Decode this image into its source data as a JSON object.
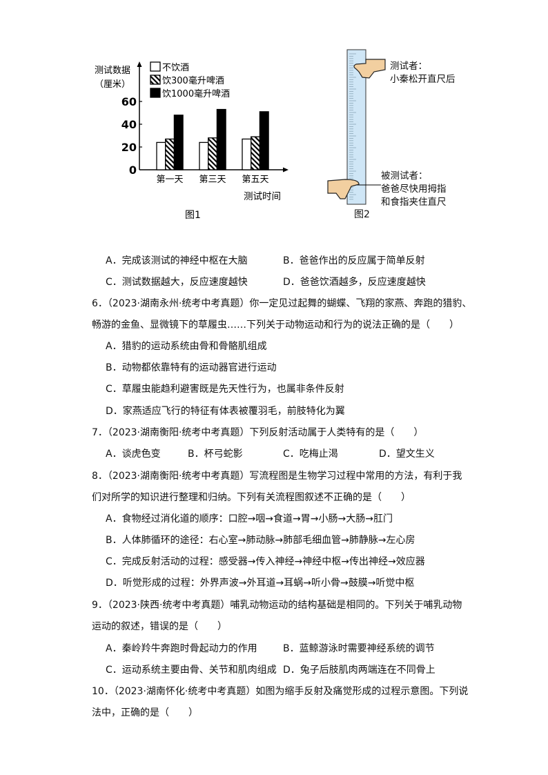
{
  "figure1": {
    "caption": "图1",
    "chart_data": {
      "type": "bar",
      "ylabel_line1": "测试数据",
      "ylabel_line2": "（厘米）",
      "xlabel": "测试时间",
      "categories": [
        "第一天",
        "第三天",
        "第五天"
      ],
      "yticks": [
        "0",
        "20",
        "40",
        "60"
      ],
      "ylim": [
        0,
        70
      ],
      "legend_position": "top-left",
      "series": [
        {
          "name": "不饮酒",
          "values": [
            24,
            24,
            27
          ],
          "fill": "white"
        },
        {
          "name": "饮300毫升啤酒",
          "values": [
            27,
            28,
            29
          ],
          "fill": "hatched"
        },
        {
          "name": "饮1000毫升啤酒",
          "values": [
            48,
            53,
            51
          ],
          "fill": "black"
        }
      ]
    }
  },
  "figure2": {
    "caption": "图2",
    "tester_line1": "测试者：",
    "tester_line2": "小秦松开直尺后",
    "subject_line1": "被测试者：",
    "subject_line2": "爸爸尽快用拇指",
    "subject_line3": "和食指夹住直尺",
    "ruler_color": "#cfe6f6",
    "hand_color": "#f2cfa0"
  },
  "q5_options": {
    "A": "A．完成该测试的神经中枢在大脑",
    "B": "B．爸爸作出的反应属于简单反射",
    "C": "C．测试数据越大，反应速度越快",
    "D": "D．爸爸饮酒越多，反应速度越快"
  },
  "q6": {
    "line1": "6．（2023·湖南永州·统考中考真题）你一定见过起舞的蝴蝶、飞翔的家燕、奔跑的猎豹、",
    "line2": "畅游的金鱼、显微镜下的草履虫……下列关于动物运动和行为的说法正确的是（　　）",
    "A": "A．猎豹的运动系统由骨和骨骼肌组成",
    "B": "B．动物都依靠特有的运动器官进行运动",
    "C": "C．草履虫能趋利避害既是先天性行为，也属非条件反射",
    "D": "D．家燕适应飞行的特征有体表被覆羽毛，前肢特化为翼"
  },
  "q7": {
    "line1": "7．（2023·湖南衡阳·统考中考真题）下列反射活动属于人类特有的是（　　）",
    "A": "A．谈虎色变",
    "B": "B．杯弓蛇影",
    "C": "C．吃梅止渴",
    "D": "D．望文生义"
  },
  "q8": {
    "line1": "8．（2023·湖南衡阳·统考中考真题）写流程图是生物学习过程中常用的方法，有利于我",
    "line2": "们对所学的知识进行整理和归纳。下列有关流程图叙述不正确的是（　　）",
    "A": "A．食物经过消化道的顺序：口腔→咽→食道→胃→小肠→大肠→肛门",
    "B": "B．人体肺循环的途径：右心室→肺动脉→肺部毛细血管→肺静脉→左心房",
    "C": "C．完成反射活动的过程：感受器→传入神经→神经中枢→传出神经→效应器",
    "D": "D．听觉形成的过程：外界声波→外耳道→耳蜗→听小骨→鼓膜→听觉中枢"
  },
  "q9": {
    "line1": "9．（2023·陕西·统考中考真题）哺乳动物运动的结构基础是相同的。下列关于哺乳动物",
    "line2": "运动的叙述，错误的是（　　）",
    "A": "A．秦岭羚牛奔跑时骨起动力的作用",
    "B": "B．蓝鲸游泳时需要神经系统的调节",
    "C": "C．运动系统主要由骨、关节和肌肉组成",
    "D": "D．兔子后肢肌肉两端连在不同骨上"
  },
  "q10": {
    "line1": "10．（2023·湖南怀化·统考中考真题）如图为缩手反射及痛觉形成的过程示意图。下列说",
    "line2": "法中，正确的是（　　）"
  }
}
